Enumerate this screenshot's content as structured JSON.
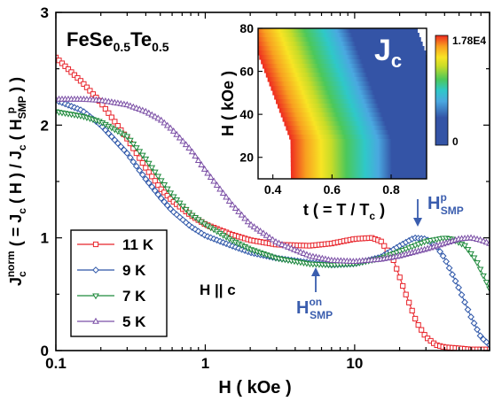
{
  "chart_data": [
    {
      "type": "line",
      "title": "FeSe",
      "title_sub1": "0.5",
      "title_mid": "Te",
      "title_sub2": "0.5",
      "xlabel": "H ( kOe )",
      "ylabel_parts": {
        "a": "J",
        "sub_c": "c",
        "sup_norm": "norm",
        "b": " ( = J",
        "sub_c2": "c",
        "c": " ( H ) / J",
        "sub_c3": "c",
        "d": " ( H",
        "sub_smp": "SMP",
        "sup_p": "p",
        "e": " ) )"
      },
      "x_scale": "log",
      "xlim": [
        0.1,
        80
      ],
      "ylim": [
        0,
        3
      ],
      "x_ticks": [
        {
          "value": 0.1,
          "label": "0.1"
        },
        {
          "value": 1,
          "label": "1"
        },
        {
          "value": 10,
          "label": "10"
        }
      ],
      "y_ticks": [
        {
          "value": 0,
          "label": "0"
        },
        {
          "value": 1,
          "label": "1"
        },
        {
          "value": 2,
          "label": "2"
        },
        {
          "value": 3,
          "label": "3"
        }
      ],
      "legend_position": "lower-left",
      "series": [
        {
          "name": "11 K",
          "color": "#e8242b",
          "marker": "square",
          "x": [
            0.1,
            0.15,
            0.2,
            0.3,
            0.4,
            0.5,
            0.6,
            0.8,
            1.0,
            1.5,
            2,
            3,
            5,
            7,
            10,
            13,
            15,
            18,
            22,
            26,
            30,
            35,
            40,
            50,
            60,
            70,
            80
          ],
          "y": [
            2.6,
            2.38,
            2.2,
            1.88,
            1.62,
            1.44,
            1.33,
            1.2,
            1.12,
            1.03,
            0.98,
            0.94,
            0.93,
            0.95,
            0.99,
            1.0,
            0.97,
            0.82,
            0.5,
            0.25,
            0.12,
            0.05,
            0.03,
            0.02,
            0.01,
            0.01,
            0.01
          ]
        },
        {
          "name": "9 K",
          "color": "#2c55a8",
          "marker": "diamond",
          "x": [
            0.1,
            0.15,
            0.2,
            0.3,
            0.4,
            0.5,
            0.6,
            0.8,
            1.0,
            1.5,
            2,
            3,
            5,
            7,
            10,
            15,
            20,
            25,
            30,
            35,
            40,
            50,
            60,
            70,
            80
          ],
          "y": [
            2.22,
            2.13,
            2.0,
            1.75,
            1.52,
            1.36,
            1.24,
            1.1,
            1.02,
            0.93,
            0.87,
            0.82,
            0.78,
            0.76,
            0.77,
            0.83,
            0.93,
            1.0,
            0.99,
            0.93,
            0.82,
            0.55,
            0.3,
            0.12,
            0.05
          ]
        },
        {
          "name": "7 K",
          "color": "#1f8a3c",
          "marker": "triangle-down",
          "x": [
            0.1,
            0.15,
            0.2,
            0.3,
            0.4,
            0.5,
            0.6,
            0.8,
            1.0,
            1.5,
            2,
            3,
            5,
            7,
            10,
            15,
            20,
            30,
            40,
            45,
            55,
            65,
            80
          ],
          "y": [
            2.12,
            2.08,
            2.03,
            1.9,
            1.7,
            1.52,
            1.38,
            1.21,
            1.12,
            0.98,
            0.9,
            0.82,
            0.77,
            0.76,
            0.77,
            0.82,
            0.88,
            0.97,
            1.0,
            0.99,
            0.93,
            0.8,
            0.55
          ]
        },
        {
          "name": "5 K",
          "color": "#7b4fa6",
          "marker": "triangle-up",
          "x": [
            0.1,
            0.15,
            0.2,
            0.3,
            0.4,
            0.5,
            0.6,
            0.8,
            1.0,
            1.5,
            2,
            3,
            5,
            7,
            10,
            15,
            20,
            30,
            40,
            50,
            60,
            70,
            80
          ],
          "y": [
            2.23,
            2.23,
            2.22,
            2.18,
            2.12,
            2.05,
            1.96,
            1.78,
            1.6,
            1.3,
            1.12,
            0.96,
            0.84,
            0.8,
            0.79,
            0.81,
            0.84,
            0.9,
            0.95,
            0.99,
            1.0,
            0.98,
            0.95
          ]
        }
      ],
      "annotations": [
        {
          "text": "H || c"
        },
        {
          "text_main": "H",
          "sup": "on",
          "sub": "SMP",
          "color": "#3a5dae"
        },
        {
          "text_main": "H",
          "sup": "p",
          "sub": "SMP",
          "color": "#3a5dae"
        }
      ]
    },
    {
      "type": "heatmap",
      "title": "J",
      "title_sub": "c",
      "xlabel_parts": {
        "a": "t ( = T / T",
        "sub": "c",
        "b": " )"
      },
      "ylabel": "H ( kOe )",
      "xlim": [
        0.35,
        0.92
      ],
      "ylim": [
        10,
        80
      ],
      "x_ticks": [
        {
          "value": 0.4,
          "label": "0.4"
        },
        {
          "value": 0.6,
          "label": "0.6"
        },
        {
          "value": 0.8,
          "label": "0.8"
        }
      ],
      "y_ticks": [
        {
          "value": 20,
          "label": "20"
        },
        {
          "value": 40,
          "label": "40"
        },
        {
          "value": 60,
          "label": "60"
        },
        {
          "value": 80,
          "label": "80"
        }
      ],
      "colorbar": {
        "min_label": "0",
        "max_label": "1.78E4",
        "min": 0,
        "max": 17800
      },
      "colorscale": [
        "#3454a6",
        "#4aa8e0",
        "#2fc8c8",
        "#4cc85a",
        "#c8dc28",
        "#f8e424",
        "#f8a020",
        "#ee2a20"
      ]
    }
  ]
}
